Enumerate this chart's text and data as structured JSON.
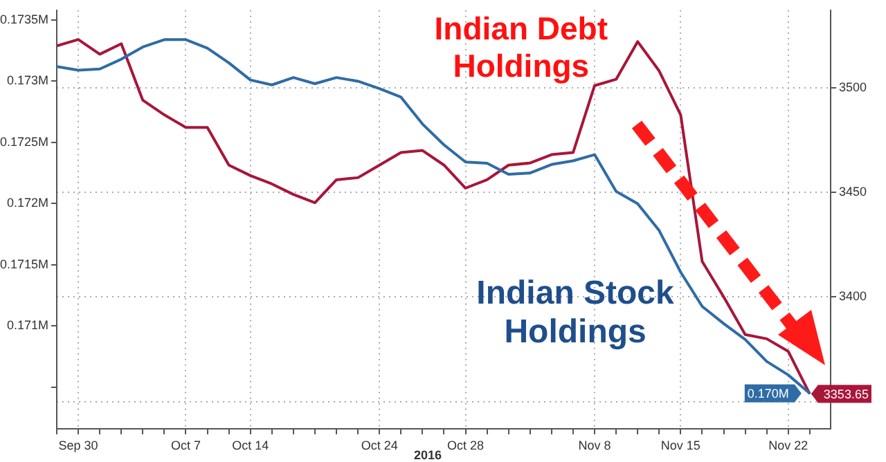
{
  "chart_data": {
    "type": "line",
    "categories": [
      null,
      "Sep 30",
      null,
      null,
      null,
      null,
      "Oct 7",
      null,
      null,
      "Oct 14",
      null,
      null,
      null,
      null,
      null,
      "Oct 24",
      null,
      null,
      null,
      "Oct 28",
      null,
      null,
      null,
      null,
      null,
      "Nov 8",
      null,
      null,
      null,
      "Nov 15",
      null,
      null,
      null,
      null,
      "Nov 22",
      null
    ],
    "series": [
      {
        "name": "Indian Stock Holdings",
        "color": "#2f6ca6",
        "axis": "y",
        "values": [
          0.17312,
          0.17309,
          0.1731,
          0.17318,
          0.17328,
          0.17334,
          0.17334,
          0.17327,
          0.17315,
          0.17301,
          0.17297,
          0.17303,
          0.17298,
          0.17303,
          0.173,
          0.17294,
          0.17287,
          0.17265,
          0.17248,
          0.17234,
          0.17233,
          0.17224,
          0.17225,
          0.17232,
          0.17235,
          0.1724,
          0.1721,
          0.172,
          0.17178,
          0.17144,
          0.17116,
          0.17102,
          0.17089,
          0.17071,
          0.1706,
          0.17045
        ],
        "value_labels": [
          null,
          null,
          null,
          null,
          null,
          null,
          null,
          null,
          null,
          null,
          null,
          null,
          null,
          null,
          null,
          null,
          null,
          null,
          null,
          null,
          null,
          null,
          null,
          null,
          null,
          null,
          null,
          null,
          null,
          null,
          null,
          null,
          null,
          null,
          null,
          "0.170M"
        ]
      },
      {
        "name": "Indian Debt Holdings",
        "color": "#a8163a",
        "axis": "y2",
        "values": [
          3520,
          3523,
          3516,
          3521,
          3494,
          3487,
          3481,
          3481,
          3463,
          3458,
          3454,
          3449,
          3445,
          3456,
          3457,
          3463,
          3469,
          3470,
          3463,
          3452,
          3456,
          3463,
          3464,
          3468,
          3469,
          3501,
          3504,
          3522,
          3508,
          3487,
          3417,
          3400,
          3382,
          3380,
          3374,
          3353.65
        ],
        "value_labels": [
          null,
          null,
          null,
          null,
          null,
          null,
          null,
          null,
          null,
          null,
          null,
          null,
          null,
          null,
          null,
          null,
          null,
          null,
          null,
          null,
          null,
          null,
          null,
          null,
          null,
          null,
          null,
          null,
          null,
          null,
          null,
          null,
          null,
          null,
          null,
          "3353.65"
        ]
      }
    ],
    "ylim": [
      0.17016,
      0.17358
    ],
    "yticks": [
      {
        "value": 0.1705,
        "label": null
      },
      {
        "value": 0.171,
        "label": "0.171M"
      },
      {
        "value": 0.1715,
        "label": "0.1715M"
      },
      {
        "value": 0.172,
        "label": "0.172M"
      },
      {
        "value": 0.1725,
        "label": "0.1725M"
      },
      {
        "value": 0.173,
        "label": "0.173M"
      },
      {
        "value": 0.1735,
        "label": "0.1735M"
      }
    ],
    "y2lim": [
      3337,
      3537
    ],
    "y2ticks": [
      {
        "value": 3350,
        "label": null
      },
      3400,
      3450,
      3500
    ],
    "grid": true,
    "legend": false,
    "annotations": [
      "2016"
    ]
  }
}
